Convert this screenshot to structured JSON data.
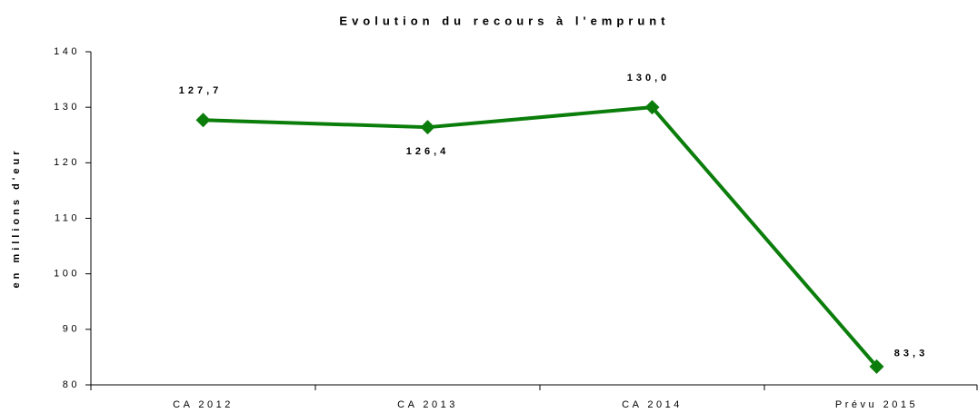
{
  "chart_data": {
    "type": "line",
    "title": "Evolution du recours à l'emprunt",
    "y_label": "en millions d'eur",
    "categories": [
      "CA 2012",
      "CA 2013",
      "CA 2014",
      "Prévu 2015"
    ],
    "values": [
      127.7,
      126.4,
      130.0,
      83.3
    ],
    "value_labels": [
      "127,7",
      "126,4",
      "130,0",
      "83,3"
    ],
    "color": "#0a7d0a",
    "ylim": [
      80,
      140
    ],
    "yticks": [
      80,
      90,
      100,
      110,
      120,
      130,
      140
    ],
    "grid": false
  }
}
